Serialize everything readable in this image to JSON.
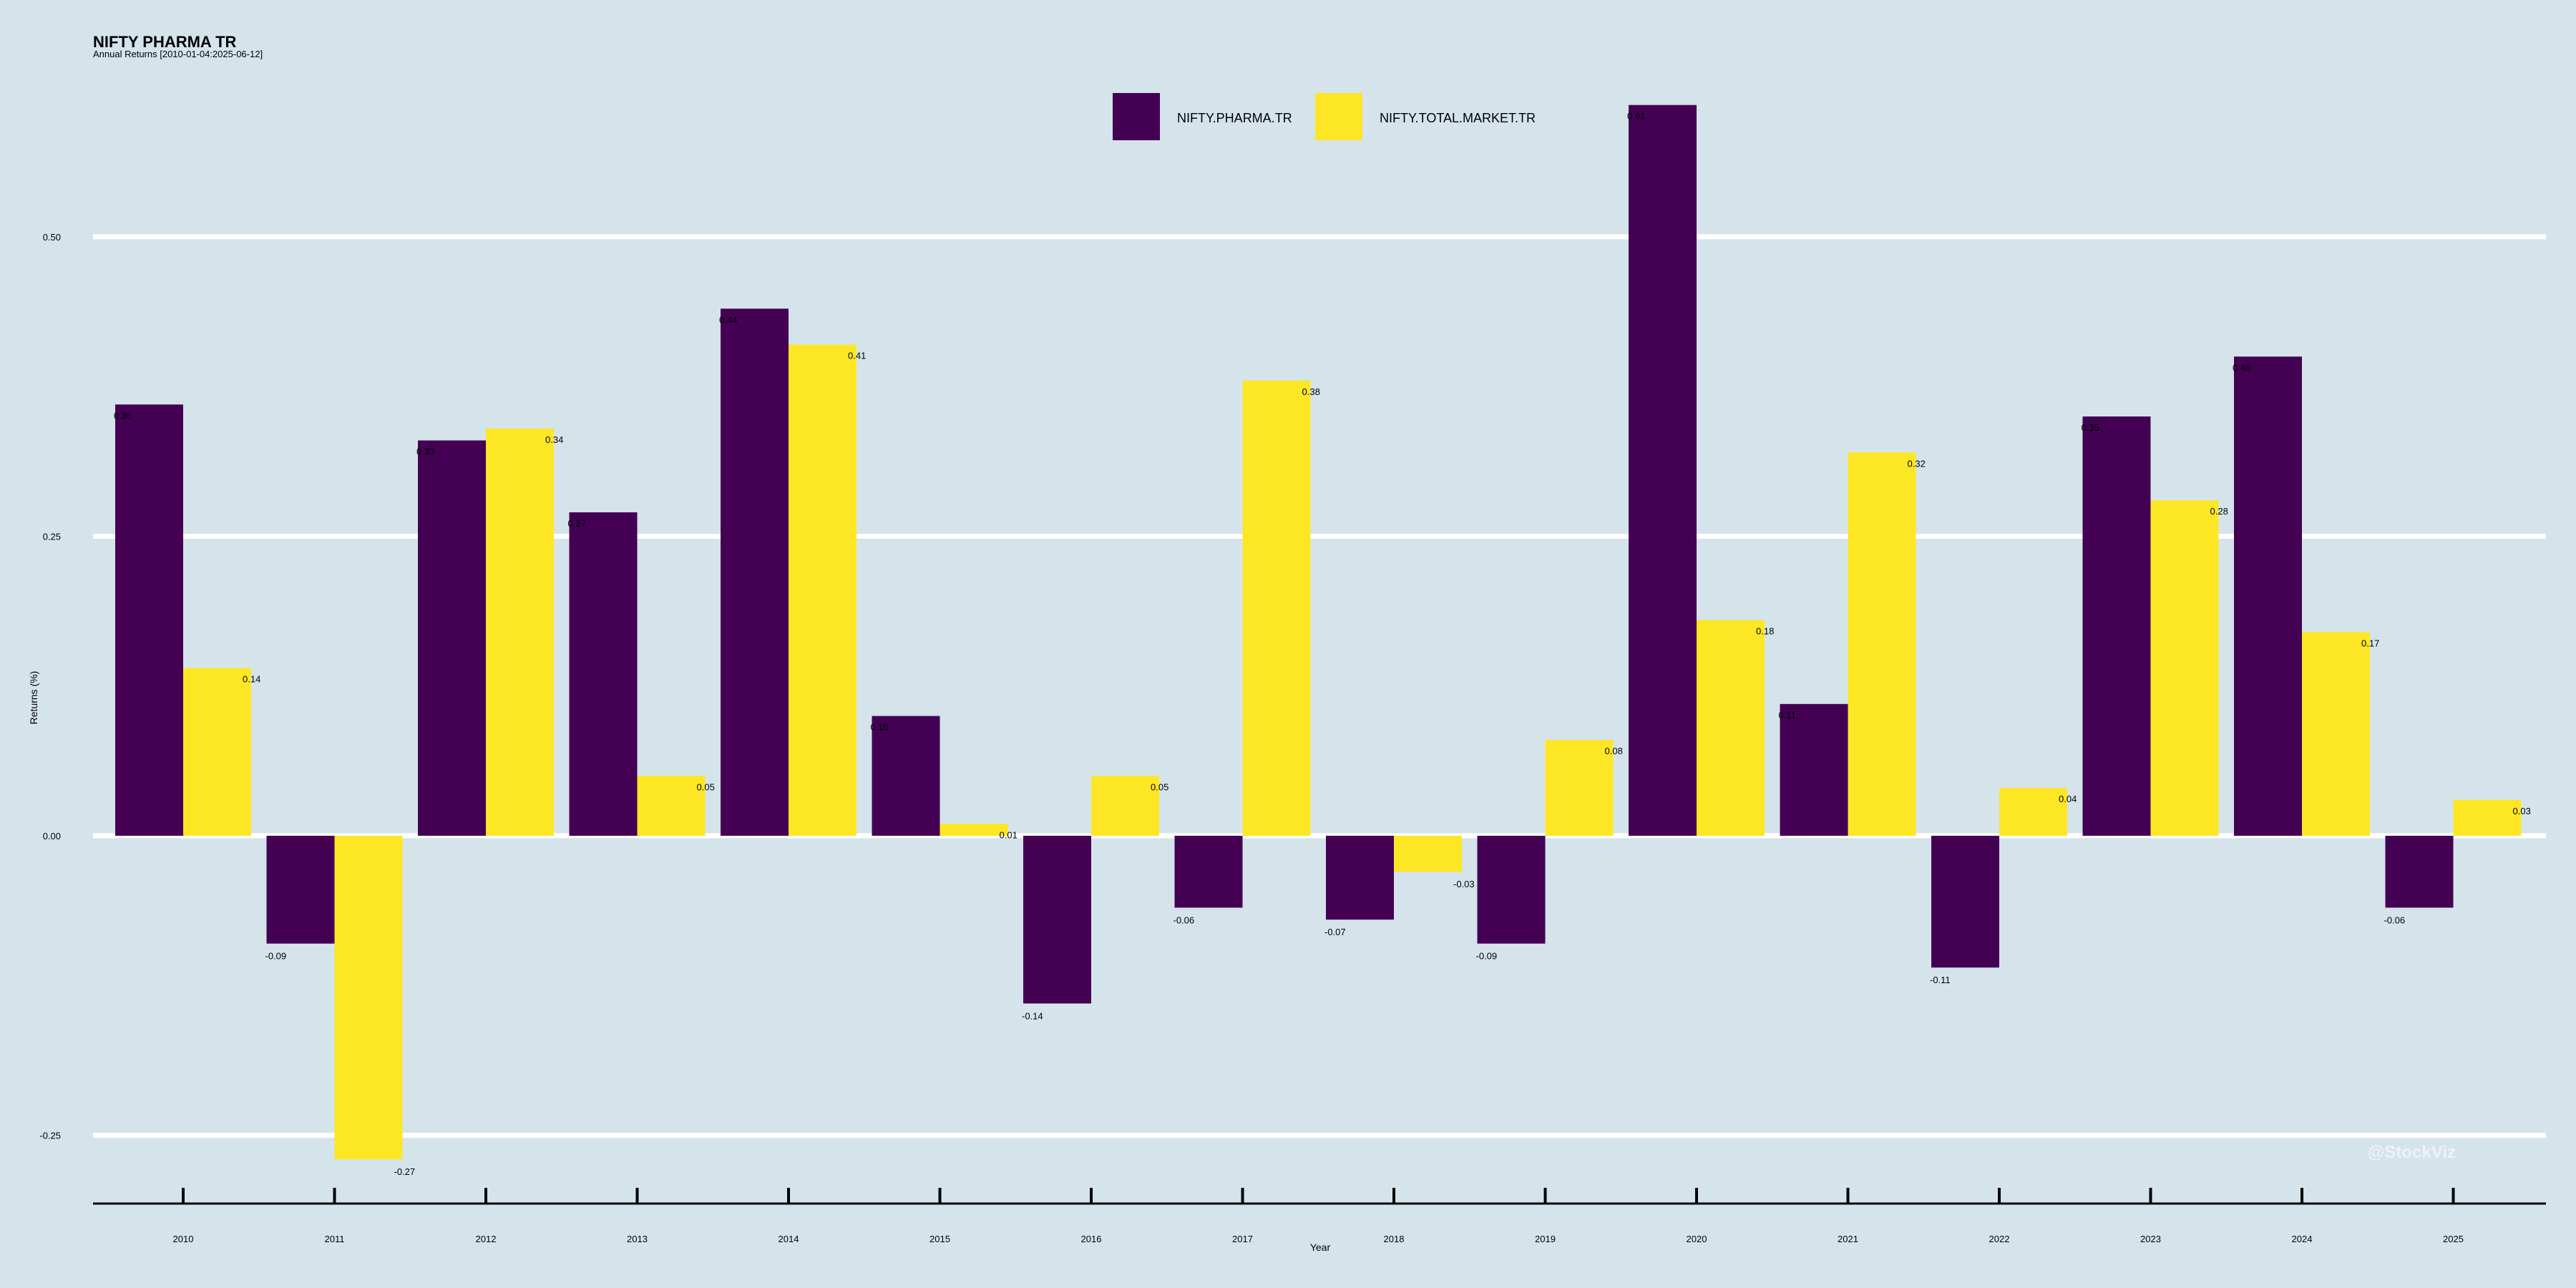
{
  "chart_data": {
    "type": "bar",
    "title": "NIFTY PHARMA TR",
    "subtitle": "Annual Returns [2010-01-04:2025-06-12]",
    "xlabel": "Year",
    "ylabel": "Returns (%)",
    "ylim": [
      -0.307,
      0.62
    ],
    "yticks": [
      -0.25,
      0.0,
      0.25,
      0.5
    ],
    "ytick_labels": [
      "-0.25",
      "0.00",
      "0.25",
      "0.50"
    ],
    "grid": true,
    "legend_position": "top",
    "categories": [
      "2010",
      "2011",
      "2012",
      "2013",
      "2014",
      "2015",
      "2016",
      "2017",
      "2018",
      "2019",
      "2020",
      "2021",
      "2022",
      "2023",
      "2024",
      "2025"
    ],
    "series": [
      {
        "name": "NIFTY.PHARMA.TR",
        "color": "#440154",
        "values": [
          0.36,
          -0.09,
          0.33,
          0.27,
          0.44,
          0.1,
          -0.14,
          -0.06,
          -0.07,
          -0.09,
          0.61,
          0.11,
          -0.11,
          0.35,
          0.4,
          -0.06
        ]
      },
      {
        "name": "NIFTY.TOTAL.MARKET.TR",
        "color": "#fde725",
        "values": [
          0.14,
          -0.27,
          0.34,
          0.05,
          0.41,
          0.01,
          0.05,
          0.38,
          -0.03,
          0.08,
          0.18,
          0.32,
          0.04,
          0.28,
          0.17,
          0.03
        ]
      }
    ]
  },
  "watermark": "@StockViz"
}
